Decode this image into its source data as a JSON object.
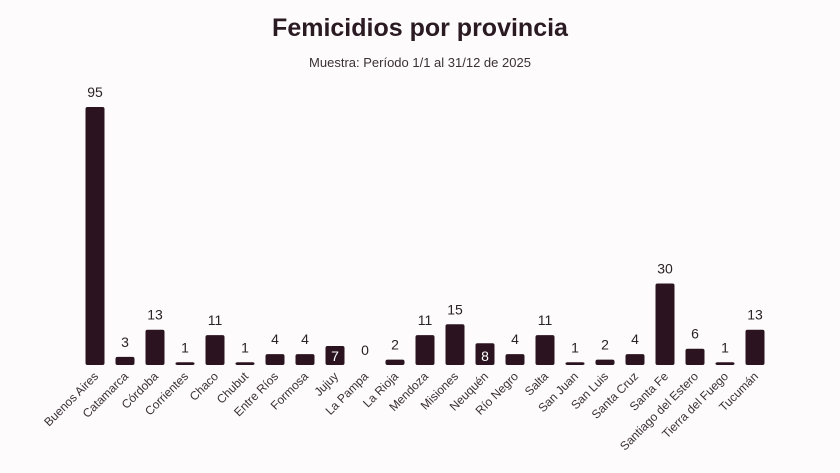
{
  "chart_data": {
    "type": "bar",
    "title": "Femicidios por provincia",
    "subtitle": "Muestra: Período 1/1 al 31/12 de 2025",
    "xlabel": "",
    "ylabel": "",
    "ylim": [
      0,
      95
    ],
    "grid": false,
    "legend": "none",
    "bar_color": "#2b1420",
    "categories": [
      "Buenos Aires",
      "Catamarca",
      "Córdoba",
      "Corrientes",
      "Chaco",
      "Chubut",
      "Entre Ríos",
      "Formosa",
      "Jujuy",
      "La Pampa",
      "La Rioja",
      "Mendoza",
      "Misiones",
      "Neuquén",
      "Río Negro",
      "Salta",
      "San Juan",
      "San Luis",
      "Santa Cruz",
      "Santa Fe",
      "Santiago del Estero",
      "Tierra del Fuego",
      "Tucumán"
    ],
    "values": [
      95,
      3,
      13,
      1,
      11,
      1,
      4,
      4,
      7,
      0,
      2,
      11,
      15,
      8,
      4,
      11,
      1,
      2,
      4,
      30,
      6,
      1,
      13
    ],
    "labels_inside_bar": [
      "Jujuy",
      "Neuquén"
    ]
  }
}
